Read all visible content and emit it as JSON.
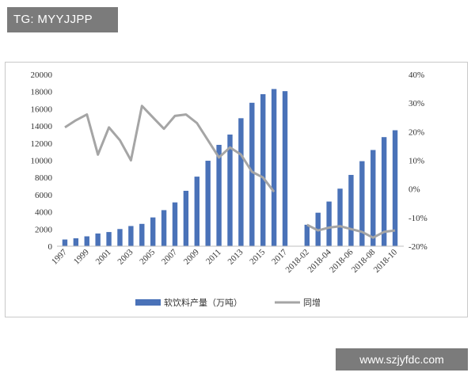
{
  "overlay": {
    "tag_label": "TG: MYYJJPP",
    "url_label": "www.szjyfdc.com"
  },
  "colors": {
    "bar": "#4a72b8",
    "line": "#a5a5a5",
    "axis_text": "#333333"
  },
  "chart_data": {
    "type": "bar",
    "title": "",
    "xlabel": "",
    "ylabel": "",
    "y_left": {
      "min": 0,
      "max": 20000,
      "ticks": [
        "0",
        "2000",
        "4000",
        "6000",
        "8000",
        "10000",
        "12000",
        "14000",
        "16000",
        "18000",
        "20000"
      ]
    },
    "y_right": {
      "min": -20,
      "max": 40,
      "ticks": [
        "-20%",
        "-10%",
        "0%",
        "10%",
        "20%",
        "30%",
        "40%"
      ]
    },
    "grid": false,
    "legend_position": "bottom",
    "legend": {
      "bar_label": "软饮料产量（万吨）",
      "line_label": "同增"
    },
    "x_tick_labels": [
      "1997",
      "1999",
      "2001",
      "2003",
      "2005",
      "2007",
      "2009",
      "2011",
      "2013",
      "2015",
      "2017",
      "2018-02",
      "2018-04",
      "2018-06",
      "2018-08",
      "2018-10"
    ],
    "groups": [
      {
        "name": "annual",
        "categories": [
          "1997",
          "1998",
          "1999",
          "2000",
          "2001",
          "2002",
          "2003",
          "2004",
          "2005",
          "2006",
          "2007",
          "2008",
          "2009",
          "2010",
          "2011",
          "2012",
          "2013",
          "2014",
          "2015",
          "2016",
          "2017"
        ],
        "series": [
          {
            "name": "软饮料产量（万吨）",
            "type": "bar",
            "axis": "left",
            "values": [
              780,
              920,
              1150,
              1480,
              1650,
              2000,
              2350,
              2600,
              3350,
              4200,
              5100,
              6450,
              8100,
              9950,
              11800,
              13000,
              14900,
              16700,
              17700,
              18300,
              18050
            ]
          },
          {
            "name": "同增",
            "type": "line",
            "axis": "right",
            "values": [
              21.5,
              24,
              26,
              12,
              21.5,
              17,
              10,
              29,
              25,
              21,
              25.5,
              26,
              23,
              17,
              11,
              14.5,
              12,
              6,
              4,
              -1
            ]
          }
        ]
      },
      {
        "name": "monthly_2018",
        "categories": [
          "2018-02",
          "2018-03",
          "2018-04",
          "2018-05",
          "2018-06",
          "2018-07",
          "2018-08",
          "2018-09",
          "2018-10"
        ],
        "series": [
          {
            "name": "软饮料产量（万吨）",
            "type": "bar",
            "axis": "left",
            "values": [
              2500,
              3900,
              5200,
              6700,
              8300,
              9900,
              11200,
              12700,
              13500
            ]
          },
          {
            "name": "同增",
            "type": "line",
            "axis": "right",
            "values": [
              -12.5,
              -14.5,
              -13.5,
              -13,
              -14,
              -15,
              -17,
              -15,
              -14.5
            ]
          }
        ]
      }
    ]
  }
}
